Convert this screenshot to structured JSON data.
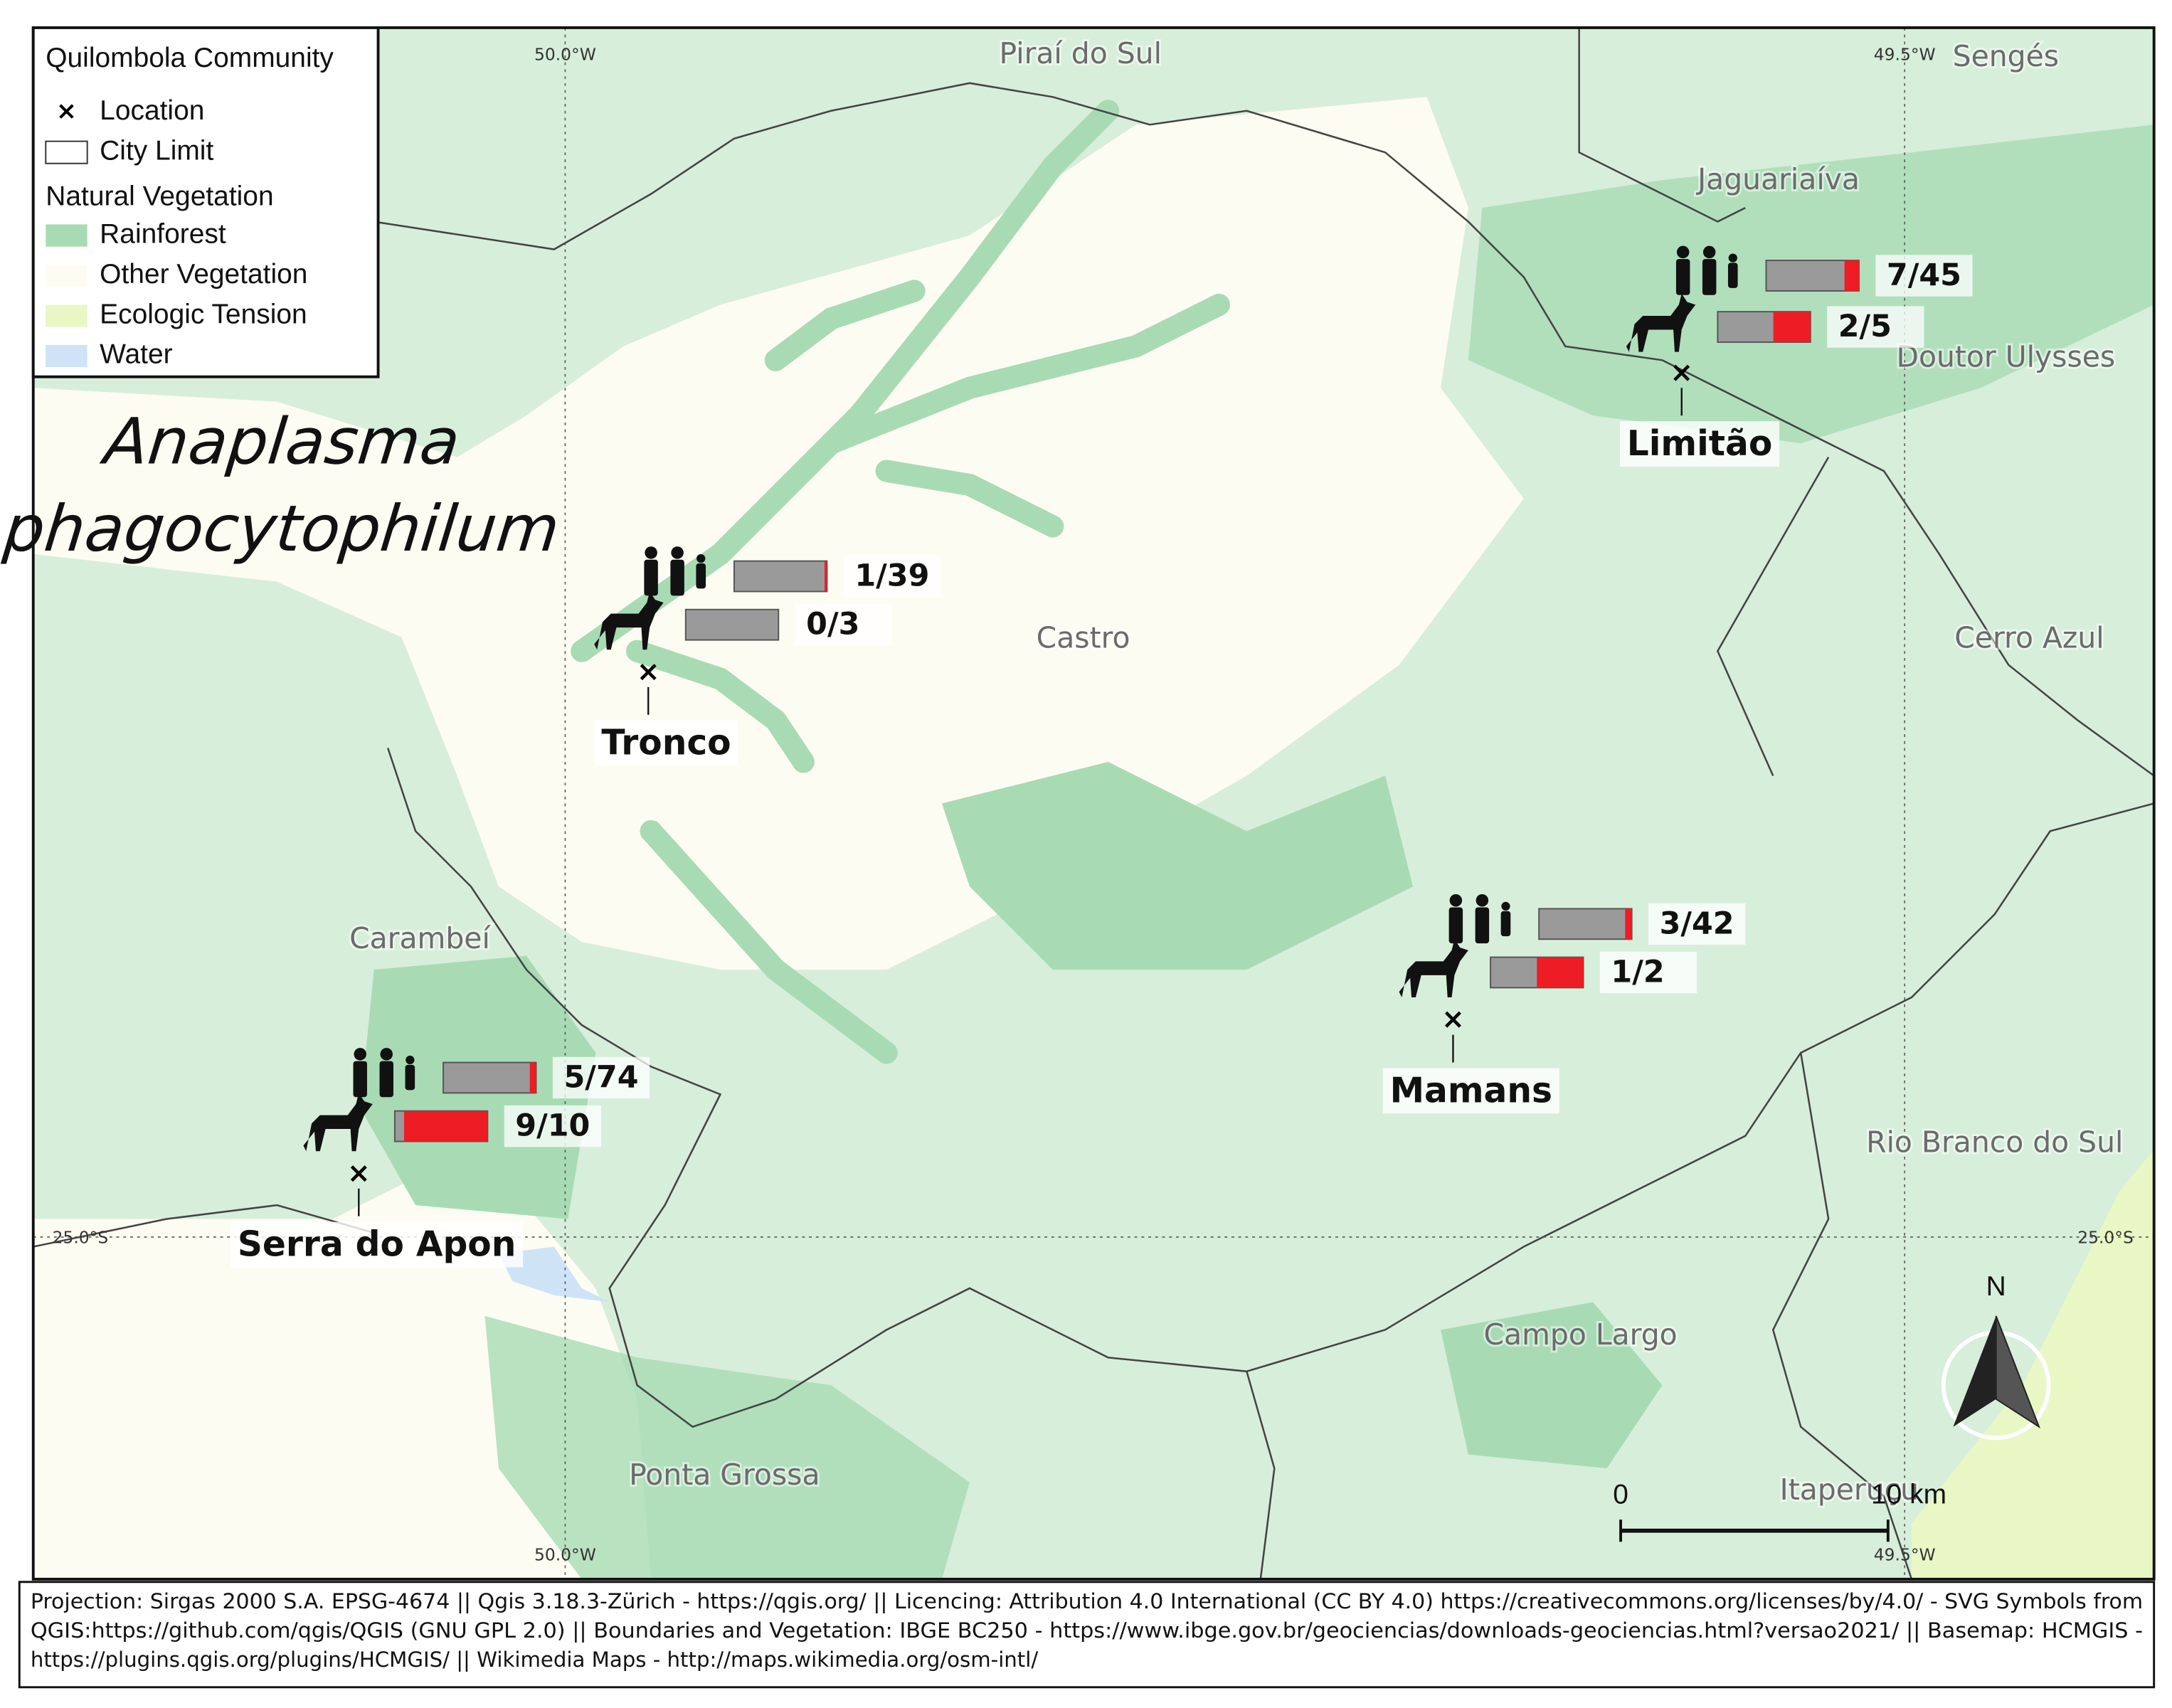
{
  "title": [
    "Anaplasma",
    "phagocytophilum"
  ],
  "legend": {
    "title": "Quilombola Community",
    "items": [
      {
        "label": "Location",
        "symbol": "cross"
      },
      {
        "label": "City Limit",
        "symbol": "box"
      }
    ],
    "subtitle": "Natural Vegetation",
    "vegetation": [
      {
        "label": "Rainforest",
        "color": "#a8dbb4"
      },
      {
        "label": "Other Vegetation",
        "color": "#fdfcf2"
      },
      {
        "label": "Ecologic Tension",
        "color": "#e9f7c4"
      },
      {
        "label": "Water",
        "color": "#cfe3f7"
      }
    ]
  },
  "bar_colors": {
    "total": "#9a9a9a",
    "positive": "#ee1c25"
  },
  "communities": [
    {
      "name": "Limitão",
      "human": {
        "label": "7/45",
        "positive": 7,
        "total": 45
      },
      "dog": {
        "label": "2/5",
        "positive": 2,
        "total": 5
      }
    },
    {
      "name": "Tronco",
      "human": {
        "label": "1/39",
        "positive": 1,
        "total": 39
      },
      "dog": {
        "label": "0/3",
        "positive": 0,
        "total": 3
      }
    },
    {
      "name": "Mamans",
      "human": {
        "label": "3/42",
        "positive": 3,
        "total": 42
      },
      "dog": {
        "label": "1/2",
        "positive": 1,
        "total": 2
      }
    },
    {
      "name": "Serra do Apon",
      "human": {
        "label": "5/74",
        "positive": 5,
        "total": 74
      },
      "dog": {
        "label": "9/10",
        "positive": 9,
        "total": 10
      }
    }
  ],
  "places": [
    "Piraí do Sul",
    "Sengés",
    "Jaguariaíva",
    "Doutor Ulysses",
    "Castro",
    "Cerro Azul",
    "Carambeí",
    "Rio Branco do Sul",
    "Campo Largo",
    "Ponta Grossa",
    "Itaperuçu"
  ],
  "graticule": {
    "lon_west": "50.0°W",
    "lon_east": "49.5°W",
    "lat": "25.0°S"
  },
  "scale_bar": {
    "start": "0",
    "end": "10 km"
  },
  "north": "N",
  "footer": [
    "Projection: Sirgas 2000 S.A. EPSG-4674 || Qgis 3.18.3-Zürich - https://qgis.org/  || Licencing: Attribution 4.0 International (CC BY 4.0)  https://creativecommons.org/licenses/by/4.0/ - SVG Symbols from",
    "QGIS:https://github.com/qgis/QGIS (GNU GPL 2.0)  ||  Boundaries and Vegetation: IBGE BC250 - https://www.ibge.gov.br/geociencias/downloads-geociencias.html?versao2021/  ||  Basemap: HCMGIS -",
    "https://plugins.qgis.org/plugins/HCMGIS/  ||  Wikimedia Maps - http://maps.wikimedia.org/osm-intl/"
  ]
}
